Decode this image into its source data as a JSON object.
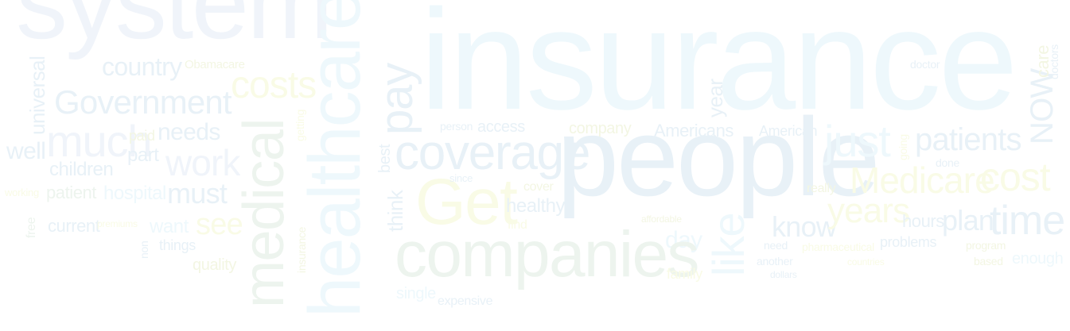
{
  "words": [
    "system",
    "insurance",
    "country",
    "Obamacare",
    "universal",
    "Government",
    "costs",
    "pay",
    "medical",
    "healthcare",
    "much",
    "paid",
    "needs",
    "part",
    "work",
    "getting",
    "well",
    "children",
    "patient",
    "hospital",
    "must",
    "working",
    "free",
    "current",
    "premiums",
    "want",
    "see",
    "quality",
    "things",
    "non",
    "insurance",
    "people",
    "coverage",
    "person",
    "access",
    "company",
    "Americans",
    "American",
    "just",
    "patients",
    "NOW",
    "care",
    "doctors",
    "Get",
    "since",
    "cover",
    "best",
    "think",
    "year",
    "healthy",
    "find",
    "like",
    "day",
    "companies",
    "single",
    "expensive",
    "affordable",
    "know",
    "years",
    "hours",
    "plan",
    "time",
    "really",
    "Medicare",
    "cost",
    "done",
    "going",
    "need",
    "pharmaceutical",
    "problems",
    "program",
    "another",
    "countries",
    "family",
    "dollars",
    "based",
    "enough",
    "doctor"
  ],
  "colors": {
    "background": "#ffffff",
    "blue_pale": "#f0f4fa",
    "cyan_pale": "#eef8fc",
    "blue_gray": "#e8f1f7",
    "yellow_green": "#f3f6e3",
    "yellow_pale": "#f9fbe6",
    "green_pale": "#edf4ee"
  }
}
